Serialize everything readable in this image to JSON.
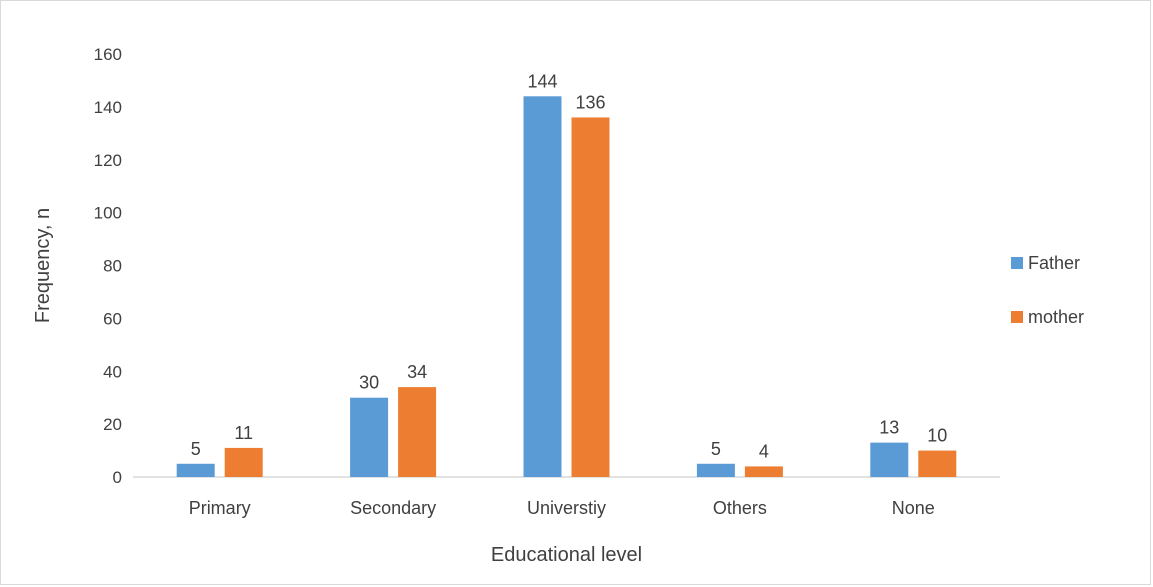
{
  "chart_data": {
    "type": "bar",
    "title": "",
    "xlabel": "Educational level",
    "ylabel": "Frequency, n",
    "categories": [
      "Primary",
      "Secondary",
      "Universtiy",
      "Others",
      "None"
    ],
    "series": [
      {
        "name": "Father",
        "values": [
          5,
          30,
          144,
          5,
          13
        ],
        "color": "#5b9bd5"
      },
      {
        "name": "mother",
        "values": [
          11,
          34,
          136,
          4,
          10
        ],
        "color": "#ed7d31"
      }
    ],
    "ylim": [
      0,
      160
    ],
    "yticks": [
      0,
      20,
      40,
      60,
      80,
      100,
      120,
      140,
      160
    ],
    "grid": false,
    "legend_position": "right",
    "data_labels": true
  }
}
